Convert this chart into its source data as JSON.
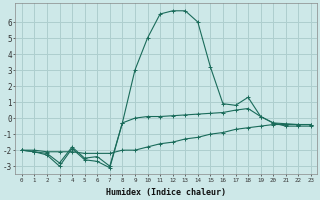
{
  "xlabel": "Humidex (Indice chaleur)",
  "background_color": "#cde8e8",
  "grid_color": "#aecece",
  "line_color": "#1a6b5a",
  "xlim": [
    -0.5,
    23.5
  ],
  "ylim": [
    -3.5,
    7.2
  ],
  "yticks": [
    -3,
    -2,
    -1,
    0,
    1,
    2,
    3,
    4,
    5,
    6
  ],
  "xticks": [
    0,
    1,
    2,
    3,
    4,
    5,
    6,
    7,
    8,
    9,
    10,
    11,
    12,
    13,
    14,
    15,
    16,
    17,
    18,
    19,
    20,
    21,
    22,
    23
  ],
  "series1_x": [
    0,
    1,
    2,
    3,
    4,
    5,
    6,
    7,
    8,
    9,
    10,
    11,
    12,
    13,
    14,
    15,
    16,
    17,
    18,
    19,
    20,
    21,
    22,
    23
  ],
  "series1_y": [
    -2.0,
    -2.1,
    -2.2,
    -2.8,
    -1.8,
    -2.5,
    -2.4,
    -3.0,
    -0.3,
    0.0,
    0.1,
    0.1,
    0.15,
    0.2,
    0.25,
    0.3,
    0.35,
    0.5,
    0.6,
    0.1,
    -0.3,
    -0.5,
    -0.5,
    -0.5
  ],
  "series2_x": [
    0,
    1,
    2,
    3,
    4,
    5,
    6,
    7,
    8,
    9,
    10,
    11,
    12,
    13,
    14,
    15,
    16,
    17,
    18,
    19,
    20,
    21,
    22,
    23
  ],
  "series2_y": [
    -2.0,
    -2.0,
    -2.1,
    -2.1,
    -2.1,
    -2.2,
    -2.2,
    -2.2,
    -2.0,
    -2.0,
    -1.8,
    -1.6,
    -1.5,
    -1.3,
    -1.2,
    -1.0,
    -0.9,
    -0.7,
    -0.6,
    -0.5,
    -0.4,
    -0.4,
    -0.4,
    -0.4
  ],
  "series3_x": [
    0,
    1,
    2,
    3,
    4,
    5,
    6,
    7,
    8,
    9,
    10,
    11,
    12,
    13,
    14,
    15,
    16,
    17,
    18,
    19,
    20,
    21,
    22,
    23
  ],
  "series3_y": [
    -2.0,
    -2.1,
    -2.3,
    -3.0,
    -1.9,
    -2.6,
    -2.7,
    -3.1,
    -0.3,
    3.0,
    5.0,
    6.5,
    6.7,
    6.7,
    6.0,
    3.2,
    0.9,
    0.8,
    1.3,
    0.1,
    -0.3,
    -0.35,
    -0.4,
    -0.4
  ]
}
